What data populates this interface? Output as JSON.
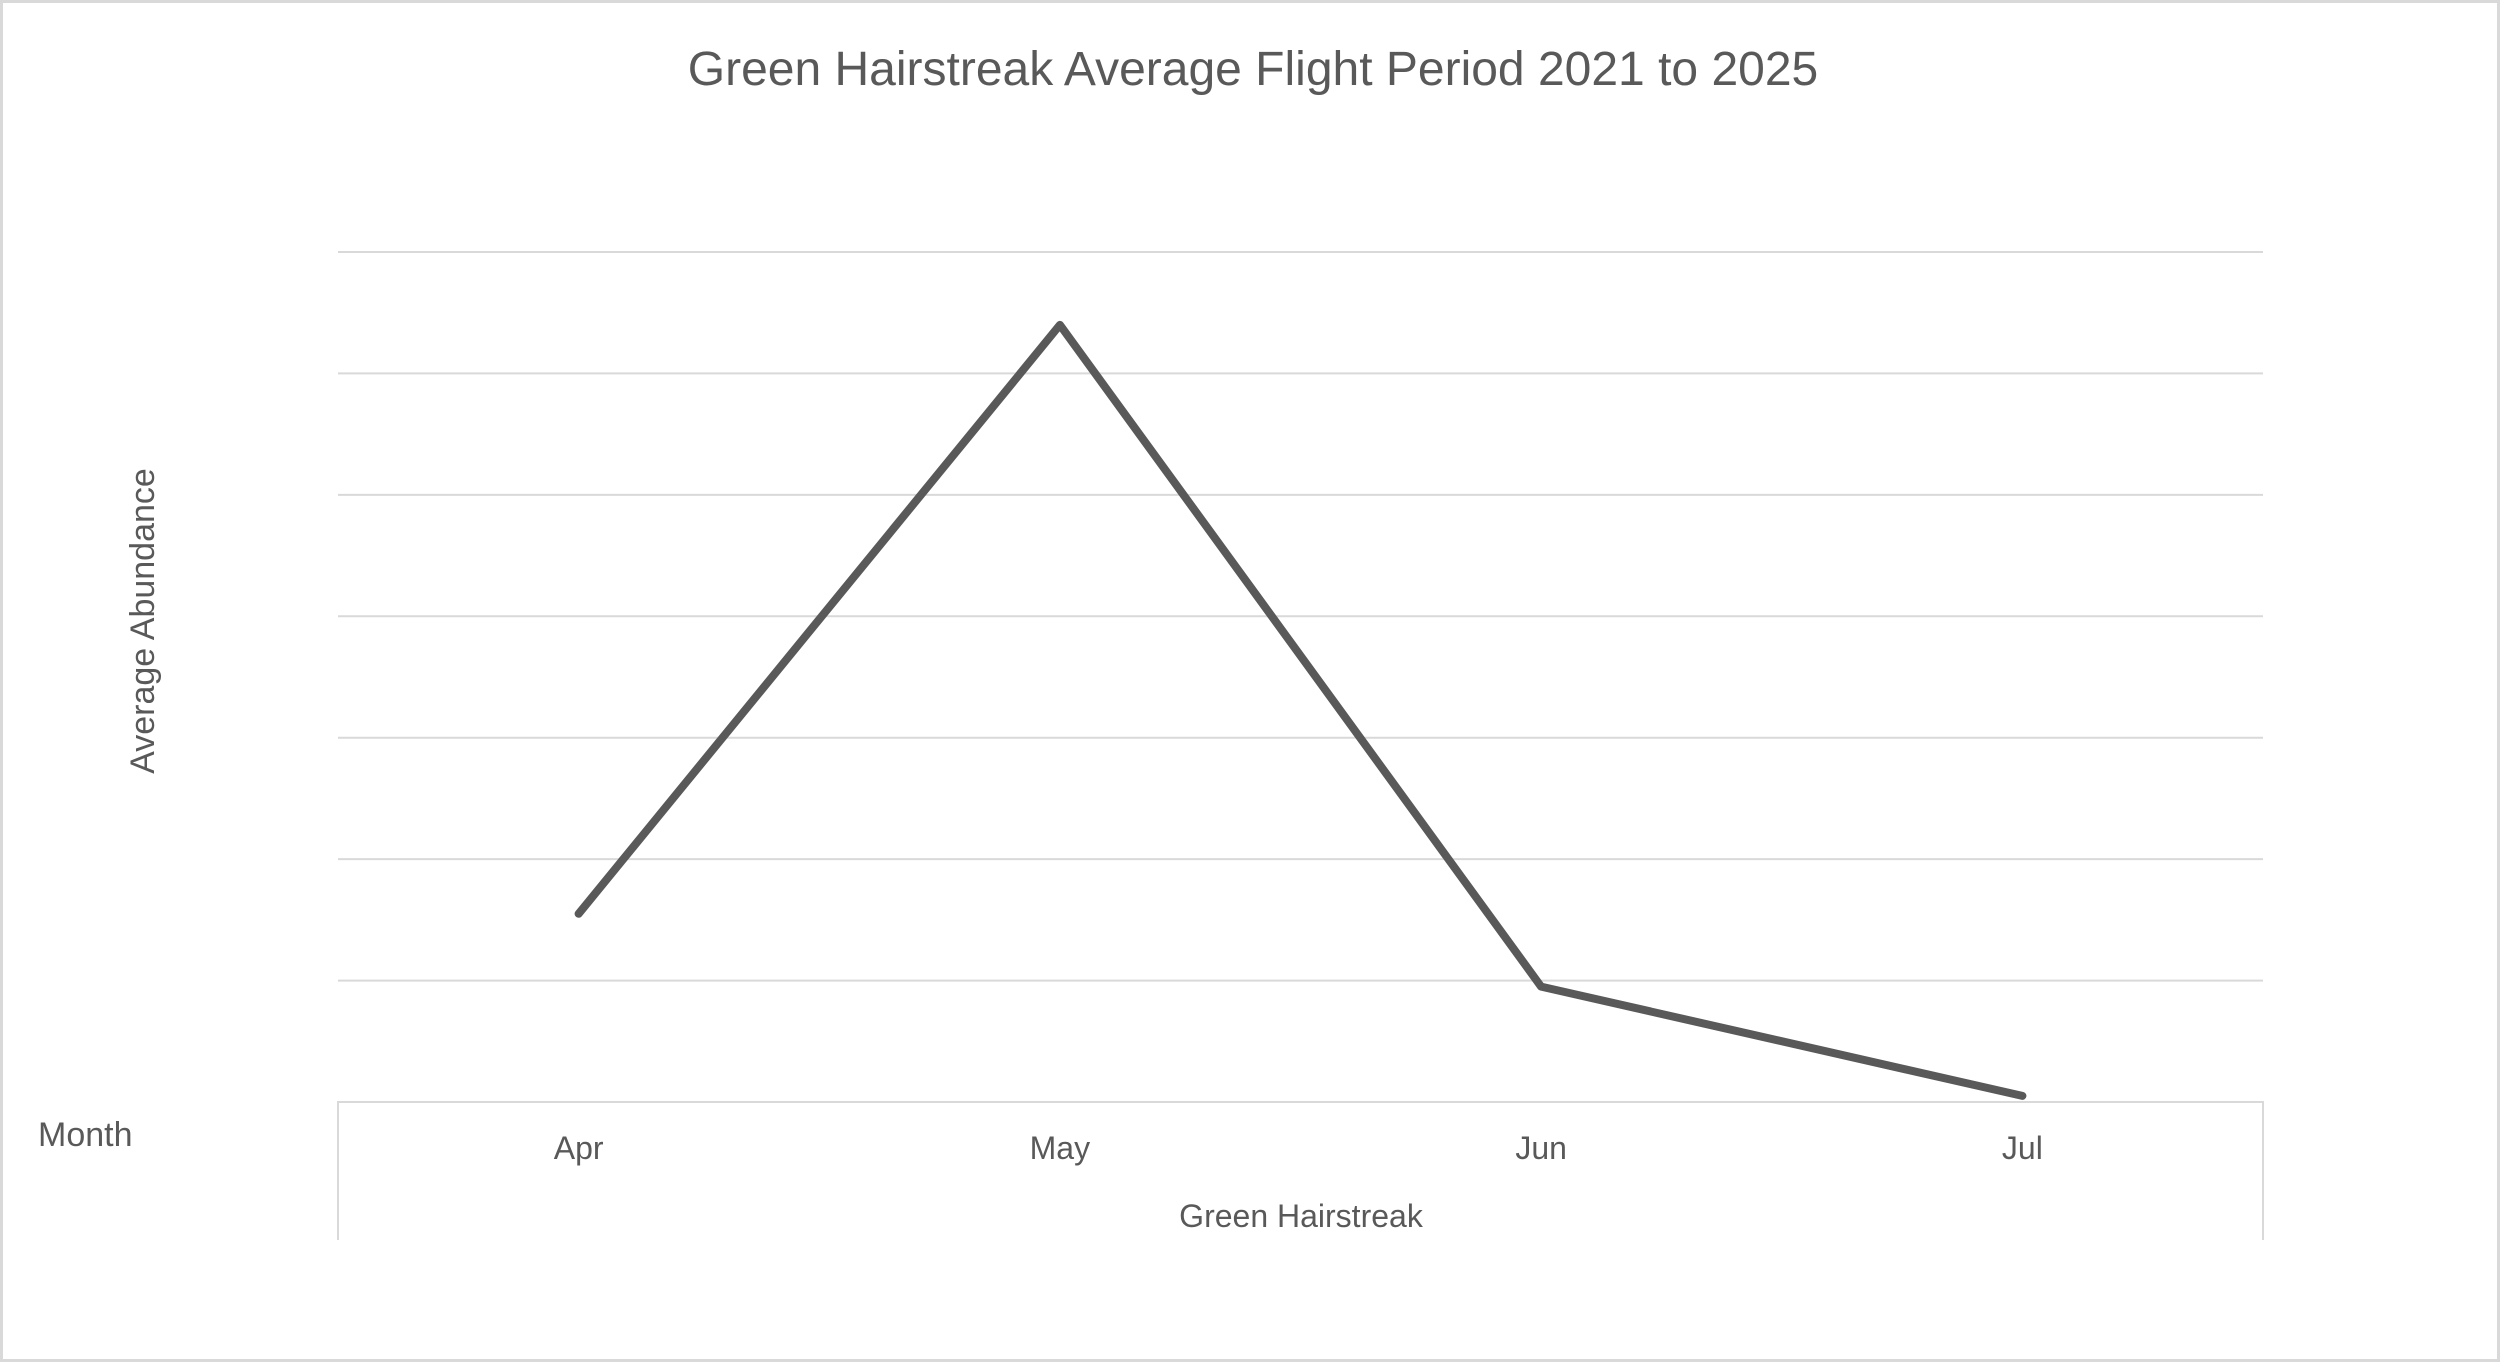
{
  "chart_data": {
    "type": "line",
    "title": "Green Hairstreak Average Flight Period 2021 to 2025",
    "xlabel": "Month",
    "ylabel": "Average Abundance",
    "category_group_label": "Green Hairstreak",
    "categories": [
      "Apr",
      "May",
      "Jun",
      "Jul"
    ],
    "series": [
      {
        "name": "",
        "values": [
          1.55,
          6.4,
          0.95,
          0.05
        ]
      }
    ],
    "ylim": [
      0,
      7
    ],
    "y_ticks": [
      0,
      1,
      2,
      3,
      4,
      5,
      6,
      7
    ],
    "y_tick_labels_visible": false,
    "grid": true,
    "legend": "none",
    "colors": {
      "series": "#595959",
      "grid": "#d9d9d9",
      "text": "#595959",
      "border": "#d9d9d9"
    }
  }
}
